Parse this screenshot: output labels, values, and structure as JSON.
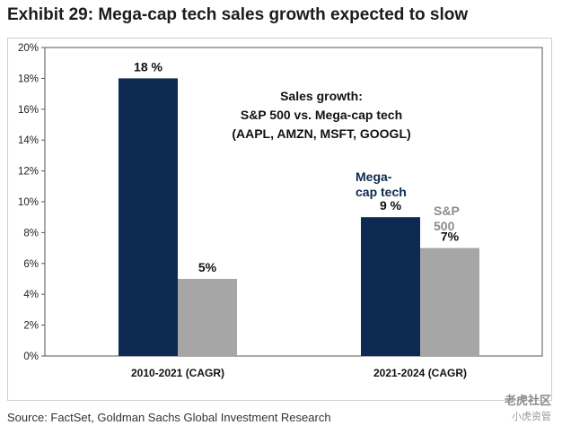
{
  "title": "Exhibit 29: Mega-cap tech sales growth expected to slow",
  "source": "Source: FactSet, Goldman Sachs Global Investment Research",
  "watermark": {
    "line1": "老虎社区",
    "line2": "小虎资管"
  },
  "chart_data": {
    "type": "bar",
    "categories": [
      "2010-2021 (CAGR)",
      "2021-2024 (CAGR)"
    ],
    "series": [
      {
        "name": "Mega-cap tech",
        "values": [
          18,
          9
        ],
        "labels": [
          "18 %",
          "9 %"
        ],
        "color": "#0d2a52"
      },
      {
        "name": "S&P 500",
        "values": [
          5,
          7
        ],
        "labels": [
          "5%",
          "7%"
        ],
        "color": "#a6a6a6"
      }
    ],
    "series_labels": [
      {
        "lines": [
          "Mega-",
          "cap tech"
        ],
        "color": "#0d2a52"
      },
      {
        "lines": [
          "S&P",
          "500"
        ],
        "color": "#8c8c8c"
      }
    ],
    "annotation": [
      "Sales growth:",
      "S&P 500 vs. Mega-cap tech",
      "(AAPL, AMZN, MSFT, GOOGL)"
    ],
    "ylim": [
      0,
      20
    ],
    "yticks": [
      0,
      2,
      4,
      6,
      8,
      10,
      12,
      14,
      16,
      18,
      20
    ],
    "ytick_labels": [
      "0%",
      "2%",
      "4%",
      "6%",
      "8%",
      "10%",
      "12%",
      "14%",
      "16%",
      "18%",
      "20%"
    ],
    "grid": false
  }
}
